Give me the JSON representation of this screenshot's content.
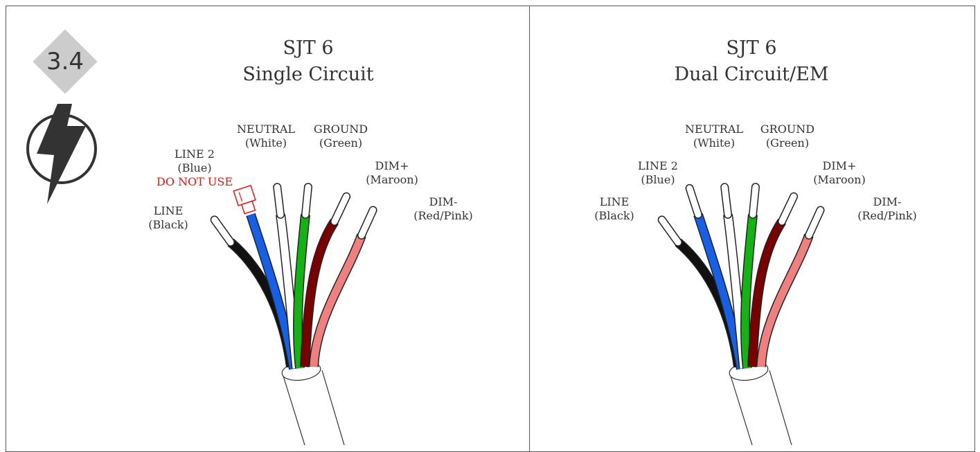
{
  "step_badge": {
    "number": "3.4"
  },
  "icons": {
    "hazard": "lightning-bolt-icon"
  },
  "colors": {
    "black": "#111111",
    "blue": "#1560e6",
    "white": "#ffffff",
    "green": "#12b312",
    "maroon": "#7a0000",
    "pink": "#f07f7f",
    "warning": "#ee1111",
    "badge": "#cccccc"
  },
  "panels": [
    {
      "title_line1": "SJT 6",
      "title_line2": "Single Circuit",
      "wires": {
        "line": {
          "name": "LINE",
          "color_name": "(Black)"
        },
        "line2": {
          "name": "LINE 2",
          "color_name": "(Blue)",
          "warning": "DO NOT USE"
        },
        "neutral": {
          "name": "NEUTRAL",
          "color_name": "(White)"
        },
        "ground": {
          "name": "GROUND",
          "color_name": "(Green)"
        },
        "dim_pos": {
          "name": "DIM+",
          "color_name": "(Maroon)"
        },
        "dim_neg": {
          "name": "DIM-",
          "color_name": "(Red/Pink)"
        }
      }
    },
    {
      "title_line1": "SJT 6",
      "title_line2": "Dual Circuit/EM",
      "wires": {
        "line": {
          "name": "LINE",
          "color_name": "(Black)"
        },
        "line2": {
          "name": "LINE 2",
          "color_name": "(Blue)"
        },
        "neutral": {
          "name": "NEUTRAL",
          "color_name": "(White)"
        },
        "ground": {
          "name": "GROUND",
          "color_name": "(Green)"
        },
        "dim_pos": {
          "name": "DIM+",
          "color_name": "(Maroon)"
        },
        "dim_neg": {
          "name": "DIM-",
          "color_name": "(Red/Pink)"
        }
      }
    }
  ]
}
